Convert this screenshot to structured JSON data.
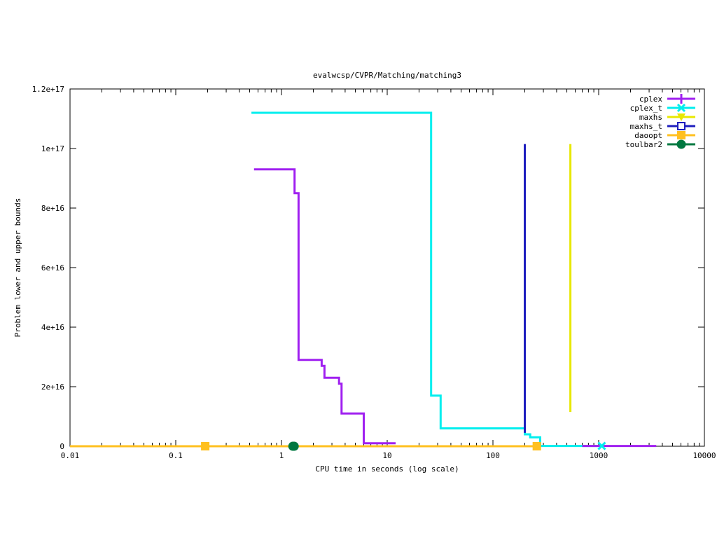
{
  "chart_data": {
    "type": "line",
    "title": "evalwcsp/CVPR/Matching/matching3",
    "xlabel": "CPU time in seconds (log scale)",
    "ylabel": "Problem lower and upper bounds",
    "xscale": "log",
    "xlim": [
      0.01,
      10000
    ],
    "ylim": [
      0,
      1.2e+17
    ],
    "grid": false,
    "legend_position": "top-right",
    "x_ticks": [
      {
        "value": 0.01,
        "label": "0.01"
      },
      {
        "value": 0.1,
        "label": "0.1"
      },
      {
        "value": 1,
        "label": "1"
      },
      {
        "value": 10,
        "label": "10"
      },
      {
        "value": 100,
        "label": "100"
      },
      {
        "value": 1000,
        "label": "1000"
      },
      {
        "value": 10000,
        "label": "10000"
      }
    ],
    "y_ticks": [
      {
        "value": 0,
        "label": "0"
      },
      {
        "value": 2e+16,
        "label": "2e+16"
      },
      {
        "value": 4e+16,
        "label": "4e+16"
      },
      {
        "value": 6e+16,
        "label": "6e+16"
      },
      {
        "value": 8e+16,
        "label": "8e+16"
      },
      {
        "value": 1e+17,
        "label": "1e+17"
      },
      {
        "value": 1.2e+17,
        "label": "1.2e+17"
      }
    ],
    "series": [
      {
        "name": "cplex",
        "color": "#a020f0",
        "marker": "plus",
        "points": [
          [
            0.55,
            9.3e+16
          ],
          [
            1.33,
            9.3e+16
          ],
          [
            1.33,
            8.5e+16
          ],
          [
            1.45,
            8.5e+16
          ],
          [
            1.45,
            2.9e+16
          ],
          [
            2.4,
            2.9e+16
          ],
          [
            2.4,
            2.7e+16
          ],
          [
            2.55,
            2.7e+16
          ],
          [
            2.55,
            2.3e+16
          ],
          [
            3.5,
            2.3e+16
          ],
          [
            3.5,
            2.1e+16
          ],
          [
            3.7,
            2.1e+16
          ],
          [
            3.7,
            1.1e+16
          ],
          [
            6.0,
            1.1e+16
          ],
          [
            6.0,
            1000000000000000.0
          ],
          [
            12.0,
            1000000000000000.0
          ]
        ],
        "extra_segments": [
          [
            [
              700,
              100000000000000.0
            ],
            [
              3500,
              100000000000000.0
            ]
          ]
        ],
        "markers": []
      },
      {
        "name": "cplex_t",
        "color": "#00eeee",
        "marker": "x",
        "points": [
          [
            0.52,
            1.12e+17
          ],
          [
            26.0,
            1.12e+17
          ],
          [
            26.0,
            1.7e+16
          ],
          [
            32.0,
            1.7e+16
          ],
          [
            32.0,
            6000000000000000.0
          ],
          [
            200.0,
            6000000000000000.0
          ],
          [
            200.0,
            4000000000000000.0
          ],
          [
            225.0,
            4000000000000000.0
          ],
          [
            225.0,
            3000000000000000.0
          ],
          [
            280.0,
            3000000000000000.0
          ],
          [
            280.0,
            100000000000000.0
          ],
          [
            1070,
            100000000000000.0
          ]
        ],
        "markers": [
          [
            1070,
            100000000000000.0
          ]
        ]
      },
      {
        "name": "maxhs",
        "color": "#e8e800",
        "marker": "filled-triangle",
        "points": [
          [
            540,
            1.15e+16
          ],
          [
            540,
            1.015e+17
          ]
        ],
        "markers": []
      },
      {
        "name": "maxhs_t",
        "color": "#1e1ebe",
        "marker": "open-square",
        "points": [
          [
            200,
            4500000000000000.0
          ],
          [
            200,
            1.015e+17
          ]
        ],
        "markers": []
      },
      {
        "name": "daoopt",
        "color": "#ffc020",
        "marker": "filled-square",
        "points": [
          [
            0.01,
            0
          ],
          [
            280,
            0
          ]
        ],
        "markers": [
          [
            0.19,
            0
          ],
          [
            260,
            0
          ]
        ]
      },
      {
        "name": "toulbar2",
        "color": "#007840",
        "marker": "circle",
        "points": [],
        "markers": [
          [
            1.28,
            0
          ],
          [
            1.32,
            0
          ]
        ]
      }
    ]
  }
}
